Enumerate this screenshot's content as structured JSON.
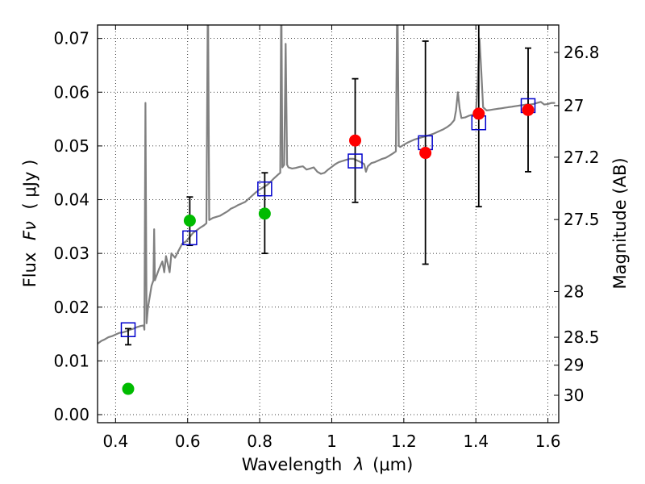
{
  "chart_data": {
    "type": "scatter",
    "xlabel_text": "Wavelength",
    "xlabel_symbol": "λ",
    "xlabel_unit": "(μm)",
    "ylabel_text": "Flux",
    "ylabel_symbol": "Fν",
    "ylabel_unit": "( μJy )",
    "y2label": "Magnitude (AB)",
    "xlim": [
      0.35,
      1.63
    ],
    "ylim": [
      -0.0015,
      0.0725
    ],
    "xticks": [
      0.4,
      0.6,
      0.8,
      1.0,
      1.2,
      1.4,
      1.6
    ],
    "xtick_labels": [
      "0.4",
      "0.6",
      "0.8",
      "1",
      "1.2",
      "1.4",
      "1.6"
    ],
    "yticks": [
      0.0,
      0.01,
      0.02,
      0.03,
      0.04,
      0.05,
      0.06,
      0.07
    ],
    "ytick_labels": [
      "0.00",
      "0.01",
      "0.02",
      "0.03",
      "0.04",
      "0.05",
      "0.06",
      "0.07"
    ],
    "y2ticks": [
      {
        "label": "26.8",
        "flux": 0.0674
      },
      {
        "label": "27",
        "flux": 0.0575
      },
      {
        "label": "27.2",
        "flux": 0.0479
      },
      {
        "label": "27.5",
        "flux": 0.0363
      },
      {
        "label": "28",
        "flux": 0.0229
      },
      {
        "label": "28.5",
        "flux": 0.0144
      },
      {
        "label": "29",
        "flux": 0.0092
      },
      {
        "label": "30",
        "flux": 0.0036
      }
    ],
    "grid": true,
    "grid_style": "dotted",
    "colors": {
      "spectrum": "#808080",
      "model_marker": "#0000cc",
      "green": "#00bb00",
      "red": "#ff0000",
      "errorbar": "#000000"
    },
    "spectrum": [
      [
        0.35,
        0.0132
      ],
      [
        0.36,
        0.0137
      ],
      [
        0.37,
        0.014
      ],
      [
        0.38,
        0.0144
      ],
      [
        0.39,
        0.0146
      ],
      [
        0.4,
        0.0149
      ],
      [
        0.41,
        0.0152
      ],
      [
        0.42,
        0.0153
      ],
      [
        0.43,
        0.0155
      ],
      [
        0.44,
        0.0158
      ],
      [
        0.45,
        0.016
      ],
      [
        0.46,
        0.0163
      ],
      [
        0.47,
        0.0165
      ],
      [
        0.478,
        0.0166
      ],
      [
        0.48,
        0.0158
      ],
      [
        0.483,
        0.058
      ],
      [
        0.486,
        0.017
      ],
      [
        0.49,
        0.02
      ],
      [
        0.5,
        0.024
      ],
      [
        0.505,
        0.025
      ],
      [
        0.507,
        0.0345
      ],
      [
        0.509,
        0.025
      ],
      [
        0.52,
        0.027
      ],
      [
        0.53,
        0.0285
      ],
      [
        0.535,
        0.0265
      ],
      [
        0.54,
        0.0295
      ],
      [
        0.55,
        0.0265
      ],
      [
        0.555,
        0.03
      ],
      [
        0.565,
        0.0292
      ],
      [
        0.575,
        0.0305
      ],
      [
        0.585,
        0.0318
      ],
      [
        0.595,
        0.0322
      ],
      [
        0.605,
        0.033
      ],
      [
        0.615,
        0.0338
      ],
      [
        0.625,
        0.0343
      ],
      [
        0.635,
        0.0348
      ],
      [
        0.645,
        0.0352
      ],
      [
        0.652,
        0.0356
      ],
      [
        0.6563,
        0.08
      ],
      [
        0.66,
        0.0362
      ],
      [
        0.67,
        0.0366
      ],
      [
        0.68,
        0.0368
      ],
      [
        0.69,
        0.037
      ],
      [
        0.7,
        0.0374
      ],
      [
        0.71,
        0.0378
      ],
      [
        0.72,
        0.0383
      ],
      [
        0.73,
        0.0386
      ],
      [
        0.74,
        0.039
      ],
      [
        0.75,
        0.0393
      ],
      [
        0.76,
        0.0396
      ],
      [
        0.77,
        0.0402
      ],
      [
        0.78,
        0.0408
      ],
      [
        0.79,
        0.0414
      ],
      [
        0.8,
        0.0419
      ],
      [
        0.81,
        0.0423
      ],
      [
        0.82,
        0.0427
      ],
      [
        0.83,
        0.0433
      ],
      [
        0.84,
        0.044
      ],
      [
        0.85,
        0.0446
      ],
      [
        0.857,
        0.045
      ],
      [
        0.86,
        0.08
      ],
      [
        0.863,
        0.046
      ],
      [
        0.868,
        0.0465
      ],
      [
        0.872,
        0.069
      ],
      [
        0.876,
        0.0465
      ],
      [
        0.88,
        0.046
      ],
      [
        0.89,
        0.0458
      ],
      [
        0.9,
        0.0459
      ],
      [
        0.91,
        0.0461
      ],
      [
        0.92,
        0.0462
      ],
      [
        0.93,
        0.0456
      ],
      [
        0.94,
        0.0458
      ],
      [
        0.95,
        0.046
      ],
      [
        0.96,
        0.0452
      ],
      [
        0.97,
        0.0448
      ],
      [
        0.98,
        0.045
      ],
      [
        0.99,
        0.0456
      ],
      [
        1.0,
        0.0461
      ],
      [
        1.01,
        0.0466
      ],
      [
        1.02,
        0.047
      ],
      [
        1.03,
        0.0472
      ],
      [
        1.04,
        0.0474
      ],
      [
        1.05,
        0.0476
      ],
      [
        1.06,
        0.0476
      ],
      [
        1.07,
        0.0473
      ],
      [
        1.08,
        0.047
      ],
      [
        1.09,
        0.0466
      ],
      [
        1.095,
        0.0452
      ],
      [
        1.1,
        0.0462
      ],
      [
        1.11,
        0.0468
      ],
      [
        1.12,
        0.047
      ],
      [
        1.13,
        0.0473
      ],
      [
        1.14,
        0.0476
      ],
      [
        1.15,
        0.0478
      ],
      [
        1.16,
        0.0482
      ],
      [
        1.17,
        0.0486
      ],
      [
        1.178,
        0.049
      ],
      [
        1.182,
        0.08
      ],
      [
        1.186,
        0.05
      ],
      [
        1.19,
        0.0498
      ],
      [
        1.2,
        0.0502
      ],
      [
        1.21,
        0.0506
      ],
      [
        1.22,
        0.0509
      ],
      [
        1.23,
        0.0512
      ],
      [
        1.24,
        0.0514
      ],
      [
        1.25,
        0.0516
      ],
      [
        1.26,
        0.0518
      ],
      [
        1.27,
        0.052
      ],
      [
        1.28,
        0.0522
      ],
      [
        1.29,
        0.0525
      ],
      [
        1.3,
        0.0528
      ],
      [
        1.31,
        0.0531
      ],
      [
        1.32,
        0.0535
      ],
      [
        1.33,
        0.054
      ],
      [
        1.34,
        0.0548
      ],
      [
        1.345,
        0.0566
      ],
      [
        1.35,
        0.06
      ],
      [
        1.355,
        0.057
      ],
      [
        1.36,
        0.0552
      ],
      [
        1.37,
        0.0553
      ],
      [
        1.38,
        0.0556
      ],
      [
        1.39,
        0.0558
      ],
      [
        1.4,
        0.056
      ],
      [
        1.405,
        0.062
      ],
      [
        1.41,
        0.07
      ],
      [
        1.415,
        0.064
      ],
      [
        1.42,
        0.0572
      ],
      [
        1.43,
        0.0566
      ],
      [
        1.44,
        0.0567
      ],
      [
        1.45,
        0.0568
      ],
      [
        1.46,
        0.0569
      ],
      [
        1.47,
        0.057
      ],
      [
        1.48,
        0.0571
      ],
      [
        1.49,
        0.0572
      ],
      [
        1.5,
        0.0573
      ],
      [
        1.51,
        0.0574
      ],
      [
        1.52,
        0.0575
      ],
      [
        1.53,
        0.0576
      ],
      [
        1.54,
        0.0577
      ],
      [
        1.55,
        0.0577
      ],
      [
        1.56,
        0.0578
      ],
      [
        1.57,
        0.058
      ],
      [
        1.58,
        0.0582
      ],
      [
        1.59,
        0.0577
      ],
      [
        1.6,
        0.0578
      ],
      [
        1.61,
        0.058
      ],
      [
        1.62,
        0.058
      ]
    ],
    "model_points": [
      {
        "x": 0.435,
        "y": 0.0158
      },
      {
        "x": 0.606,
        "y": 0.0329
      },
      {
        "x": 0.814,
        "y": 0.042
      },
      {
        "x": 1.065,
        "y": 0.0472
      },
      {
        "x": 1.26,
        "y": 0.0506
      },
      {
        "x": 1.408,
        "y": 0.0543
      },
      {
        "x": 1.545,
        "y": 0.0575
      }
    ],
    "observations": [
      {
        "x": 0.435,
        "y": 0.0048,
        "yerr_low": 0.016,
        "yerr_high": 0.013,
        "color": "green"
      },
      {
        "x": 0.606,
        "y": 0.0361,
        "yerr_low": 0.0315,
        "yerr_high": 0.0405,
        "color": "green"
      },
      {
        "x": 0.814,
        "y": 0.0374,
        "yerr_low": 0.03,
        "yerr_high": 0.045,
        "color": "green"
      },
      {
        "x": 1.065,
        "y": 0.051,
        "yerr_low": 0.0395,
        "yerr_high": 0.0625,
        "color": "red"
      },
      {
        "x": 1.26,
        "y": 0.0487,
        "yerr_low": 0.028,
        "yerr_high": 0.0695,
        "color": "red"
      },
      {
        "x": 1.408,
        "y": 0.056,
        "yerr_low": 0.0387,
        "yerr_high": 0.073,
        "color": "red"
      },
      {
        "x": 1.545,
        "y": 0.0567,
        "yerr_low": 0.0452,
        "yerr_high": 0.0682,
        "color": "red"
      }
    ]
  }
}
